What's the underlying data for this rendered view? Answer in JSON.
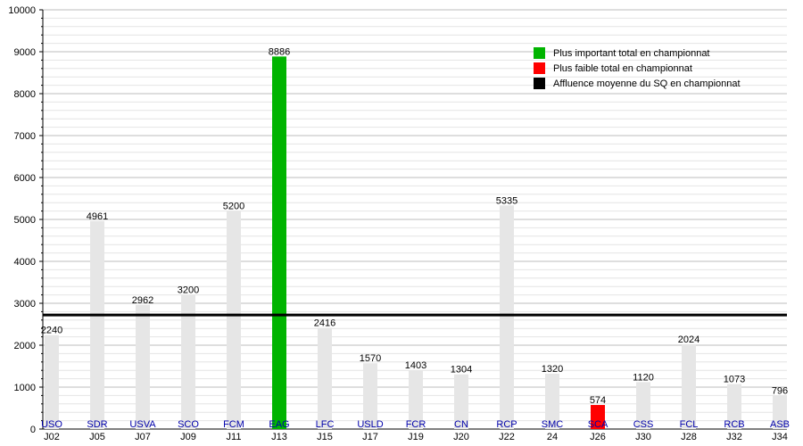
{
  "chart_data": {
    "type": "bar",
    "ylim": [
      0,
      10000
    ],
    "yticks": [
      "0",
      "1000",
      "2000",
      "3000",
      "4000",
      "5000",
      "6000",
      "7000",
      "8000",
      "9000",
      "10000"
    ],
    "average": 2720,
    "bars": [
      {
        "team": "USO",
        "day": "J02",
        "value": 2240,
        "label": "2240",
        "kind": "normal"
      },
      {
        "team": "SDR",
        "day": "J05",
        "value": 4961,
        "label": "4961",
        "kind": "normal"
      },
      {
        "team": "USVA",
        "day": "J07",
        "value": 2962,
        "label": "2962",
        "kind": "normal"
      },
      {
        "team": "SCO",
        "day": "J09",
        "value": 3200,
        "label": "3200",
        "kind": "normal"
      },
      {
        "team": "FCM",
        "day": "J11",
        "value": 5200,
        "label": "5200",
        "kind": "normal"
      },
      {
        "team": "EAG",
        "day": "J13",
        "value": 8886,
        "label": "8886",
        "kind": "max"
      },
      {
        "team": "LFC",
        "day": "J15",
        "value": 2416,
        "label": "2416",
        "kind": "normal"
      },
      {
        "team": "USLD",
        "day": "J17",
        "value": 1570,
        "label": "1570",
        "kind": "normal"
      },
      {
        "team": "FCR",
        "day": "J19",
        "value": 1403,
        "label": "1403",
        "kind": "normal"
      },
      {
        "team": "CN",
        "day": "J20",
        "value": 1304,
        "label": "1304",
        "kind": "normal"
      },
      {
        "team": "RCP",
        "day": "J22",
        "value": 5335,
        "label": "5335",
        "kind": "normal"
      },
      {
        "team": "SMC",
        "day": "24",
        "value": 1320,
        "label": "1320",
        "kind": "normal"
      },
      {
        "team": "SCA",
        "day": "J26",
        "value": 574,
        "label": "574",
        "kind": "min"
      },
      {
        "team": "CSS",
        "day": "J30",
        "value": 1120,
        "label": "1120",
        "kind": "normal"
      },
      {
        "team": "FCL",
        "day": "J28",
        "value": 2024,
        "label": "2024",
        "kind": "normal"
      },
      {
        "team": "RCB",
        "day": "J32",
        "value": 1073,
        "label": "1073",
        "kind": "normal"
      },
      {
        "team": "ASB",
        "day": "J34",
        "value": 796,
        "label": "796",
        "kind": "normal"
      }
    ],
    "legend": [
      {
        "label": "Plus important total en championnat",
        "color": "#00b400"
      },
      {
        "label": "Plus faible total en championnat",
        "color": "#ff0000"
      },
      {
        "label": "Affluence moyenne du SQ en championnat",
        "color": "#000000"
      }
    ],
    "colors": {
      "normal": "#e6e6e6",
      "max": "#00b400",
      "min": "#ff0000",
      "average": "#000000",
      "grid": "#c8c8c8",
      "team_label": "#0000aa"
    }
  }
}
